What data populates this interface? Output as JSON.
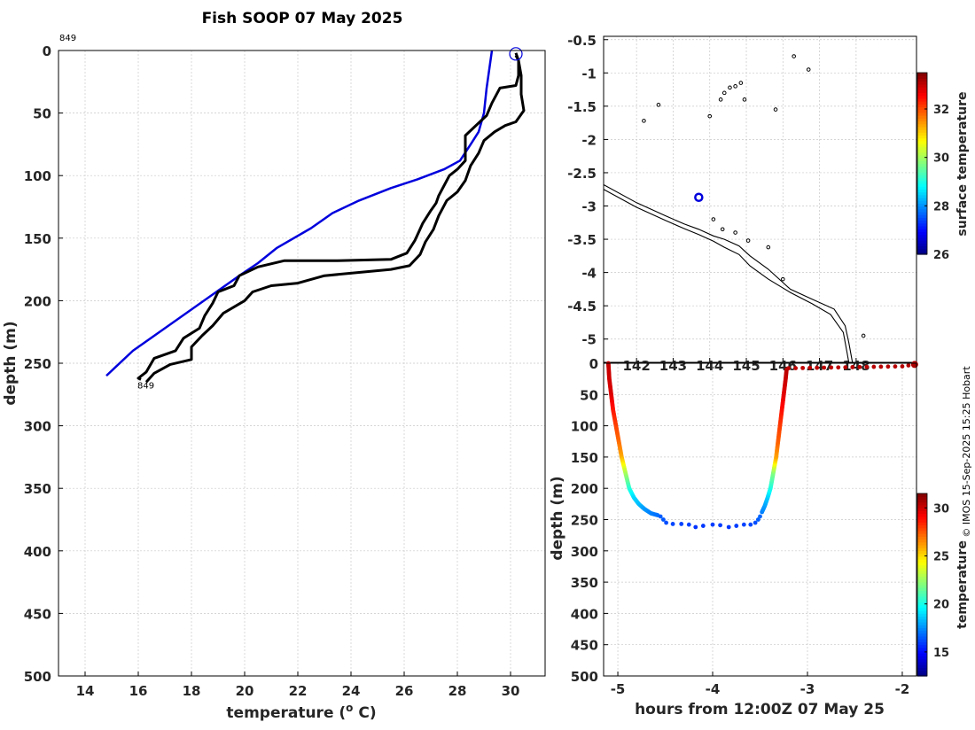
{
  "credit": "© IMOS 15-Sep-2025 15:25 Hobart",
  "chart_data": [
    {
      "type": "line",
      "title": "Fish SOOP 07 May 2025",
      "xlabel": "temperature (o C)",
      "xlabel_text": "temperature (",
      "xlabel_sup": "o",
      "xlabel_end": " C)",
      "ylabel": "depth (m)",
      "xlim": [
        13,
        31.3
      ],
      "ylim": [
        500,
        0
      ],
      "xticks": [
        14,
        16,
        18,
        20,
        22,
        24,
        26,
        28,
        30
      ],
      "yticks": [
        0,
        50,
        100,
        150,
        200,
        250,
        300,
        350,
        400,
        450,
        500
      ],
      "profile_label": "849",
      "end_label": "849",
      "series": [
        {
          "name": "reference profile",
          "color": "#0000dd",
          "points": [
            [
              29.3,
              0
            ],
            [
              29.2,
              15
            ],
            [
              29.1,
              30
            ],
            [
              29.0,
              50
            ],
            [
              28.8,
              65
            ],
            [
              28.5,
              75
            ],
            [
              28.1,
              88
            ],
            [
              27.5,
              95
            ],
            [
              26.5,
              103
            ],
            [
              25.5,
              110
            ],
            [
              24.3,
              120
            ],
            [
              23.3,
              130
            ],
            [
              22.5,
              142
            ],
            [
              21.2,
              158
            ],
            [
              20.5,
              170
            ],
            [
              19.8,
              180
            ],
            [
              18.6,
              198
            ],
            [
              17.0,
              222
            ],
            [
              15.8,
              240
            ],
            [
              14.8,
              260
            ]
          ]
        },
        {
          "name": "downcast",
          "color": "#000000",
          "points": [
            [
              30.2,
              2
            ],
            [
              30.3,
              8
            ],
            [
              30.3,
              20
            ],
            [
              30.2,
              28
            ],
            [
              29.6,
              30
            ],
            [
              29.3,
              42
            ],
            [
              29.1,
              52
            ],
            [
              28.6,
              62
            ],
            [
              28.3,
              68
            ],
            [
              28.3,
              78
            ],
            [
              28.3,
              88
            ],
            [
              28.0,
              95
            ],
            [
              27.7,
              100
            ],
            [
              27.5,
              108
            ],
            [
              27.3,
              116
            ],
            [
              27.2,
              122
            ],
            [
              27.0,
              128
            ],
            [
              26.7,
              138
            ],
            [
              26.4,
              152
            ],
            [
              26.1,
              162
            ],
            [
              25.5,
              167
            ],
            [
              23.5,
              168
            ],
            [
              21.5,
              168
            ],
            [
              20.5,
              173
            ],
            [
              19.8,
              180
            ],
            [
              19.6,
              188
            ],
            [
              19.0,
              193
            ],
            [
              18.8,
              202
            ],
            [
              18.5,
              212
            ],
            [
              18.3,
              222
            ],
            [
              17.7,
              230
            ],
            [
              17.4,
              240
            ],
            [
              16.6,
              246
            ],
            [
              16.3,
              257
            ],
            [
              16.0,
              262
            ],
            [
              16.1,
              263
            ]
          ]
        },
        {
          "name": "upcast",
          "color": "#000000",
          "points": [
            [
              16.3,
              265
            ],
            [
              16.6,
              258
            ],
            [
              17.2,
              251
            ],
            [
              18.0,
              247
            ],
            [
              18.0,
              237
            ],
            [
              18.4,
              228
            ],
            [
              18.8,
              220
            ],
            [
              19.2,
              210
            ],
            [
              20.0,
              200
            ],
            [
              20.3,
              193
            ],
            [
              21.0,
              188
            ],
            [
              22.0,
              186
            ],
            [
              23.0,
              180
            ],
            [
              25.5,
              175
            ],
            [
              26.2,
              172
            ],
            [
              26.6,
              163
            ],
            [
              26.8,
              153
            ],
            [
              27.1,
              143
            ],
            [
              27.3,
              132
            ],
            [
              27.6,
              120
            ],
            [
              28.0,
              113
            ],
            [
              28.3,
              104
            ],
            [
              28.5,
              92
            ],
            [
              28.8,
              82
            ],
            [
              29.0,
              72
            ],
            [
              29.4,
              65
            ],
            [
              29.8,
              60
            ],
            [
              30.2,
              57
            ],
            [
              30.5,
              48
            ],
            [
              30.4,
              35
            ],
            [
              30.4,
              20
            ],
            [
              30.3,
              8
            ],
            [
              30.2,
              4
            ]
          ]
        }
      ]
    },
    {
      "type": "scatter",
      "subtype": "map",
      "xlim": [
        141.1,
        149.65
      ],
      "ylim": [
        -5.35,
        -0.45
      ],
      "xticks": [
        142,
        143,
        144,
        145,
        146,
        147,
        148
      ],
      "xtick_labels": [
        "142",
        "143",
        "144",
        "145",
        "146",
        "147",
        "148"
      ],
      "yticks": [
        -0.5,
        -1,
        -1.5,
        -2,
        -2.5,
        -3,
        -3.5,
        -4,
        -4.5,
        -5
      ],
      "colorbar_label": "surface temperature",
      "colorbar_range": [
        26,
        33.5
      ],
      "colorbar_ticks": [
        26,
        28,
        30,
        32
      ],
      "position_marker": {
        "lon": 143.7,
        "lat": -2.87
      },
      "coast_outer": [
        [
          141.1,
          -2.68
        ],
        [
          142.0,
          -2.95
        ],
        [
          142.8,
          -3.15
        ],
        [
          143.3,
          -3.27
        ],
        [
          143.7,
          -3.35
        ],
        [
          144.1,
          -3.45
        ],
        [
          144.4,
          -3.5
        ],
        [
          144.8,
          -3.6
        ],
        [
          145.1,
          -3.75
        ],
        [
          145.6,
          -3.95
        ],
        [
          146.2,
          -4.25
        ],
        [
          146.8,
          -4.4
        ],
        [
          147.4,
          -4.55
        ],
        [
          147.7,
          -4.8
        ],
        [
          147.8,
          -5.05
        ],
        [
          147.9,
          -5.35
        ]
      ],
      "coast_inner": [
        [
          141.1,
          -2.75
        ],
        [
          142.0,
          -3.02
        ],
        [
          142.8,
          -3.22
        ],
        [
          143.3,
          -3.34
        ],
        [
          143.7,
          -3.43
        ],
        [
          144.1,
          -3.53
        ],
        [
          144.4,
          -3.62
        ],
        [
          144.8,
          -3.73
        ],
        [
          145.1,
          -3.9
        ],
        [
          145.6,
          -4.1
        ],
        [
          146.2,
          -4.3
        ],
        [
          146.8,
          -4.47
        ],
        [
          147.3,
          -4.63
        ],
        [
          147.65,
          -4.9
        ],
        [
          147.75,
          -5.2
        ],
        [
          147.8,
          -5.35
        ]
      ],
      "islands": [
        [
          142.2,
          -1.72
        ],
        [
          142.6,
          -1.48
        ],
        [
          144.0,
          -1.65
        ],
        [
          144.3,
          -1.4
        ],
        [
          144.4,
          -1.3
        ],
        [
          144.55,
          -1.22
        ],
        [
          144.7,
          -1.2
        ],
        [
          144.85,
          -1.15
        ],
        [
          144.95,
          -1.4
        ],
        [
          145.8,
          -1.55
        ],
        [
          146.3,
          -0.75
        ],
        [
          146.7,
          -0.95
        ],
        [
          144.1,
          -3.2
        ],
        [
          144.35,
          -3.35
        ],
        [
          144.7,
          -3.4
        ],
        [
          145.05,
          -3.52
        ],
        [
          145.6,
          -3.62
        ],
        [
          146.0,
          -4.1
        ],
        [
          148.2,
          -4.95
        ]
      ]
    },
    {
      "type": "scatter",
      "xlabel": "hours from 12:00Z 07 May 25",
      "ylabel": "depth (m)",
      "xlim": [
        -5.15,
        -1.85
      ],
      "ylim": [
        500,
        0
      ],
      "xticks": [
        -5,
        -4,
        -3,
        -2
      ],
      "yticks": [
        0,
        50,
        100,
        150,
        200,
        250,
        300,
        350,
        400,
        450,
        500
      ],
      "colorbar_label": "temperature",
      "colorbar_range": [
        12.5,
        31.5
      ],
      "colorbar_ticks": [
        15,
        20,
        25,
        30
      ],
      "down_profile": [
        [
          -5.1,
          0,
          30.2
        ],
        [
          -5.09,
          25,
          30.0
        ],
        [
          -5.07,
          50,
          29.8
        ],
        [
          -5.05,
          75,
          28.8
        ],
        [
          -5.02,
          100,
          28.0
        ],
        [
          -4.99,
          125,
          27.2
        ],
        [
          -4.96,
          150,
          26.0
        ],
        [
          -4.92,
          175,
          23.0
        ],
        [
          -4.88,
          200,
          20.5
        ],
        [
          -4.83,
          215,
          19.0
        ],
        [
          -4.78,
          225,
          18.5
        ],
        [
          -4.72,
          233,
          17.8
        ],
        [
          -4.65,
          240,
          17.3
        ],
        [
          -4.58,
          243,
          17.0
        ]
      ],
      "bottom_points": [
        [
          -4.55,
          245,
          16.6
        ],
        [
          -4.52,
          250,
          16.5
        ],
        [
          -4.49,
          255,
          16.3
        ],
        [
          -4.42,
          257,
          16.2
        ],
        [
          -4.33,
          257,
          16.1
        ],
        [
          -4.25,
          258,
          16.1
        ],
        [
          -4.18,
          262,
          15.8
        ],
        [
          -4.1,
          260,
          15.9
        ],
        [
          -4.0,
          258,
          16.0
        ],
        [
          -3.92,
          259,
          16.0
        ],
        [
          -3.83,
          262,
          15.9
        ],
        [
          -3.75,
          260,
          16.0
        ],
        [
          -3.67,
          258,
          16.1
        ],
        [
          -3.6,
          258,
          16.2
        ],
        [
          -3.55,
          255,
          16.3
        ],
        [
          -3.52,
          250,
          16.6
        ],
        [
          -3.5,
          245,
          16.8
        ]
      ],
      "up_profile": [
        [
          -3.48,
          238,
          17.2
        ],
        [
          -3.45,
          228,
          17.8
        ],
        [
          -3.42,
          215,
          18.6
        ],
        [
          -3.39,
          200,
          20.0
        ],
        [
          -3.36,
          175,
          22.0
        ],
        [
          -3.33,
          150,
          26.0
        ],
        [
          -3.31,
          125,
          27.3
        ],
        [
          -3.29,
          100,
          28.0
        ],
        [
          -3.27,
          75,
          28.8
        ],
        [
          -3.25,
          50,
          29.6
        ],
        [
          -3.23,
          25,
          30.1
        ],
        [
          -3.22,
          10,
          30.4
        ]
      ],
      "surface_track": [
        [
          -3.2,
          8,
          30.3
        ],
        [
          -2.0,
          5,
          30.5
        ],
        [
          -1.87,
          2,
          30.6
        ]
      ]
    }
  ]
}
